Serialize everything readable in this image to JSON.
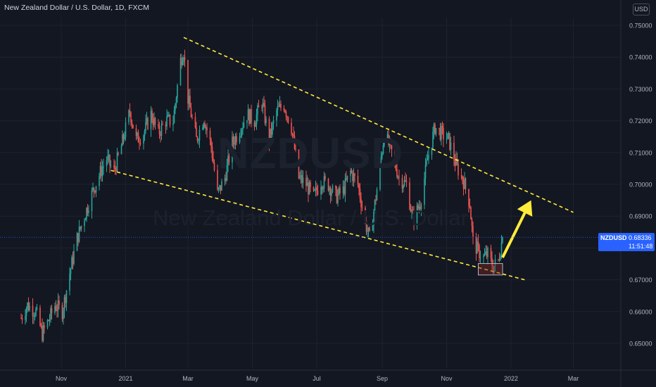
{
  "header": {
    "title": "New Zealand Dollar / U.S. Dollar, 1D, FXCM",
    "currency_button": "USD"
  },
  "watermark": {
    "symbol": "NZDUSD",
    "name": "New Zealand Dollar / U.S. Dollar"
  },
  "last_price": {
    "symbol": "NZDUSD",
    "price": "0.68336",
    "countdown": "11:51:48"
  },
  "colors": {
    "background": "#131722",
    "bull": "#26a69a",
    "bear": "#ef5350",
    "trendline": "#ffeb3b",
    "arrow": "#ffeb3b",
    "price_line": "#2962ff"
  },
  "chart_data": {
    "type": "candlestick",
    "title": "New Zealand Dollar / U.S. Dollar, 1D, FXCM",
    "ylim": [
      0.6448,
      0.7584
    ],
    "y_ticks": [
      "0.75000",
      "0.74000",
      "0.73000",
      "0.72000",
      "0.71000",
      "0.70000",
      "0.69000",
      "0.68000",
      "0.67000",
      "0.66000",
      "0.65000"
    ],
    "x_ticks": [
      "Nov",
      "2021",
      "Mar",
      "May",
      "Jul",
      "Sep",
      "Nov",
      "2022",
      "Mar"
    ],
    "x_tick_dates": [
      "2020-11-01",
      "2021-01-01",
      "2021-03-01",
      "2021-05-01",
      "2021-07-01",
      "2021-09-01",
      "2021-11-01",
      "2022-01-01",
      "2022-03-01"
    ],
    "grid": true,
    "price_path": [
      [
        "2020-09-24",
        0.658
      ],
      [
        "2020-09-30",
        0.662
      ],
      [
        "2020-10-08",
        0.66
      ],
      [
        "2020-10-14",
        0.653
      ],
      [
        "2020-10-21",
        0.658
      ],
      [
        "2020-10-26",
        0.662
      ],
      [
        "2020-11-02",
        0.66
      ],
      [
        "2020-11-09",
        0.672
      ],
      [
        "2020-11-16",
        0.683
      ],
      [
        "2020-11-23",
        0.69
      ],
      [
        "2020-11-30",
        0.697
      ],
      [
        "2020-12-07",
        0.703
      ],
      [
        "2020-12-14",
        0.708
      ],
      [
        "2020-12-21",
        0.704
      ],
      [
        "2020-12-28",
        0.712
      ],
      [
        "2021-01-05",
        0.723
      ],
      [
        "2021-01-11",
        0.714
      ],
      [
        "2021-01-18",
        0.716
      ],
      [
        "2021-01-25",
        0.722
      ],
      [
        "2021-02-01",
        0.716
      ],
      [
        "2021-02-08",
        0.72
      ],
      [
        "2021-02-15",
        0.72
      ],
      [
        "2021-02-22",
        0.739
      ],
      [
        "2021-02-25",
        0.742
      ],
      [
        "2021-03-01",
        0.727
      ],
      [
        "2021-03-09",
        0.714
      ],
      [
        "2021-03-16",
        0.721
      ],
      [
        "2021-03-23",
        0.712
      ],
      [
        "2021-03-29",
        0.697
      ],
      [
        "2021-04-05",
        0.702
      ],
      [
        "2021-04-12",
        0.713
      ],
      [
        "2021-04-19",
        0.717
      ],
      [
        "2021-04-26",
        0.722
      ],
      [
        "2021-05-03",
        0.72
      ],
      [
        "2021-05-10",
        0.726
      ],
      [
        "2021-05-17",
        0.714
      ],
      [
        "2021-05-24",
        0.723
      ],
      [
        "2021-05-31",
        0.725
      ],
      [
        "2021-06-07",
        0.718
      ],
      [
        "2021-06-14",
        0.702
      ],
      [
        "2021-06-21",
        0.7
      ],
      [
        "2021-06-28",
        0.696
      ],
      [
        "2021-07-05",
        0.701
      ],
      [
        "2021-07-12",
        0.7
      ],
      [
        "2021-07-19",
        0.696
      ],
      [
        "2021-07-26",
        0.698
      ],
      [
        "2021-08-02",
        0.704
      ],
      [
        "2021-08-09",
        0.7
      ],
      [
        "2021-08-16",
        0.688
      ],
      [
        "2021-08-20",
        0.683
      ],
      [
        "2021-08-26",
        0.696
      ],
      [
        "2021-09-03",
        0.716
      ],
      [
        "2021-09-10",
        0.71
      ],
      [
        "2021-09-17",
        0.702
      ],
      [
        "2021-09-24",
        0.7
      ],
      [
        "2021-09-30",
        0.689
      ],
      [
        "2021-10-07",
        0.694
      ],
      [
        "2021-10-14",
        0.708
      ],
      [
        "2021-10-21",
        0.718
      ],
      [
        "2021-10-27",
        0.716
      ],
      [
        "2021-11-03",
        0.714
      ],
      [
        "2021-11-10",
        0.706
      ],
      [
        "2021-11-17",
        0.701
      ],
      [
        "2021-11-23",
        0.694
      ],
      [
        "2021-11-26",
        0.682
      ],
      [
        "2021-12-01",
        0.679
      ],
      [
        "2021-12-06",
        0.677
      ],
      [
        "2021-12-10",
        0.678
      ],
      [
        "2021-12-15",
        0.674
      ],
      [
        "2021-12-20",
        0.676
      ],
      [
        "2021-12-24",
        0.6834
      ]
    ]
  }
}
